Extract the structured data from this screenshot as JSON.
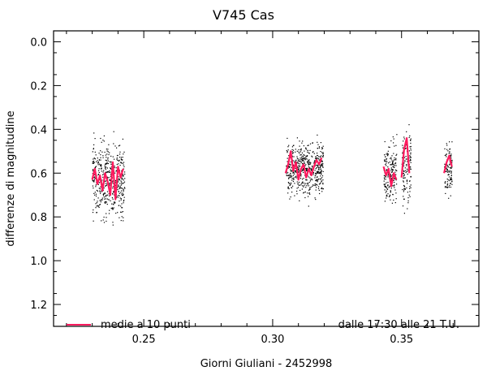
{
  "chart_data": {
    "type": "scatter",
    "title": "V745 Cas",
    "xlabel": "Giorni Giuliani - 2452998",
    "ylabel": "differenze di magnitudine",
    "xlim": [
      0.215,
      0.38
    ],
    "ylim": [
      1.3,
      -0.05
    ],
    "y_inverted": true,
    "xticks": [
      0.25,
      0.3,
      0.35
    ],
    "xtick_labels": [
      "0.25",
      "0.30",
      "0.35"
    ],
    "yticks": [
      0.0,
      0.2,
      0.4,
      0.6,
      0.8,
      1.0,
      1.2
    ],
    "ytick_labels": [
      "0.0",
      "0.2",
      "0.4",
      "0.6",
      "0.8",
      "1.0",
      "1.2"
    ],
    "grid": false,
    "legend": {
      "position": "bottom-left",
      "entries": [
        "medie a 10 punti"
      ]
    },
    "annotation": "dalle 17:30 alle 21 T.U.",
    "series": [
      {
        "kind": "scatter",
        "color": "#000000",
        "segments": [
          {
            "x_range": [
              0.23,
              0.2425
            ],
            "center": 0.63,
            "spread": 0.14
          },
          {
            "x_range": [
              0.305,
              0.3195
            ],
            "center": 0.58,
            "spread": 0.11
          },
          {
            "x_range": [
              0.343,
              0.348
            ],
            "center": 0.6,
            "spread": 0.12
          },
          {
            "x_range": [
              0.35,
              0.3535
            ],
            "center": 0.57,
            "spread": 0.15
          },
          {
            "x_range": [
              0.3665,
              0.3695
            ],
            "center": 0.58,
            "spread": 0.12
          }
        ]
      },
      {
        "name": "medie a 10 punti",
        "kind": "line",
        "color": "#ff1a5e",
        "x": [
          0.23,
          0.231,
          0.232,
          0.233,
          0.234,
          0.235,
          0.236,
          0.237,
          0.238,
          0.239,
          0.24,
          0.241,
          0.242,
          null,
          0.305,
          0.306,
          0.307,
          0.308,
          0.309,
          0.31,
          0.311,
          0.312,
          0.313,
          0.314,
          0.315,
          0.316,
          0.317,
          0.318,
          0.319,
          null,
          0.343,
          0.344,
          0.345,
          0.346,
          0.347,
          0.348,
          null,
          0.35,
          0.351,
          0.352,
          0.353,
          null,
          0.3665,
          0.3675,
          0.3685,
          0.3695
        ],
        "y": [
          0.63,
          0.58,
          0.65,
          0.61,
          0.68,
          0.6,
          0.64,
          0.7,
          0.55,
          0.72,
          0.57,
          0.62,
          0.58,
          null,
          0.6,
          0.56,
          0.5,
          0.59,
          0.55,
          0.63,
          0.58,
          0.56,
          0.62,
          0.58,
          0.61,
          0.57,
          0.54,
          0.56,
          0.53,
          null,
          0.57,
          0.61,
          0.58,
          0.66,
          0.6,
          0.63,
          null,
          0.62,
          0.49,
          0.44,
          0.6,
          null,
          0.6,
          0.55,
          0.52,
          0.57
        ]
      }
    ]
  }
}
